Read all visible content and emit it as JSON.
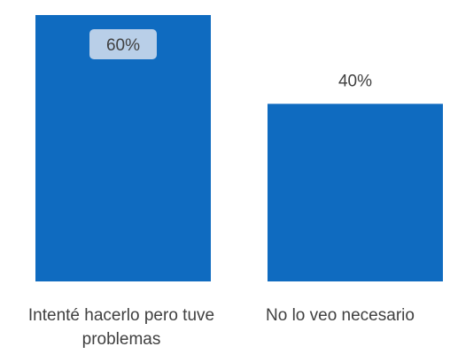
{
  "chart_data": {
    "type": "bar",
    "categories": [
      "Intenté hacerlo pero tuve problemas",
      "No lo veo necesario"
    ],
    "values": [
      60,
      40
    ],
    "data_labels": [
      "60%",
      "40%"
    ],
    "ylim": [
      0,
      60
    ],
    "grid": false,
    "legend": "none",
    "bar_color": "#0f6bc0",
    "label_inside_bg": "#b9cfe8",
    "label_color": "#404040"
  }
}
